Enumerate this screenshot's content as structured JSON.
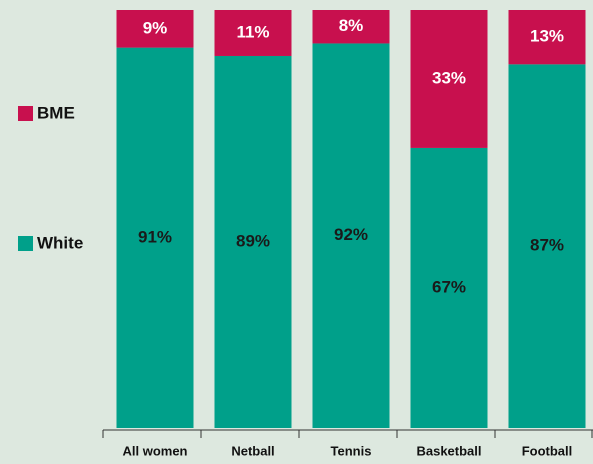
{
  "chart_data": {
    "type": "stacked_bar",
    "categories": [
      "All women",
      "Netball",
      "Tennis",
      "Basketball",
      "Football"
    ],
    "series": [
      {
        "name": "White",
        "color": "#00a08a",
        "values": [
          91,
          89,
          92,
          67,
          87
        ],
        "value_labels": [
          "91%",
          "89%",
          "92%",
          "67%",
          "87%"
        ]
      },
      {
        "name": "BME",
        "color": "#c8104e",
        "values": [
          9,
          11,
          8,
          33,
          13
        ],
        "value_labels": [
          "9%",
          "11%",
          "8%",
          "33%",
          "13%"
        ]
      }
    ],
    "legend": "left"
  }
}
